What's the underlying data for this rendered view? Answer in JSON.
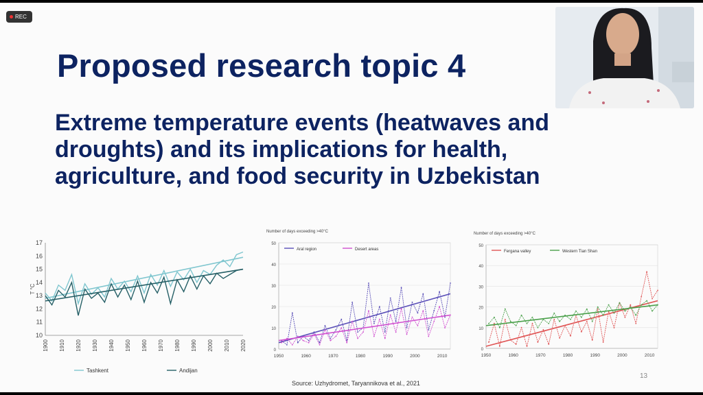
{
  "recording": {
    "label": "REC"
  },
  "slide": {
    "title": "Proposed research topic 4",
    "subtitle": "Extreme temperature events (heatwaves and droughts) and its implications for health, agriculture, and food security in Uzbekistan",
    "source": "Source: Uzhydromet, Taryannikova et al., 2021",
    "page_number": "13"
  },
  "chart_data": [
    {
      "type": "line",
      "title": "",
      "xlabel": "",
      "ylabel": "T °C",
      "xlim": [
        1900,
        2020
      ],
      "ylim": [
        10,
        17
      ],
      "x_ticks": [
        "1900",
        "1910",
        "1920",
        "1930",
        "1940",
        "1950",
        "1960",
        "1970",
        "1980",
        "1990",
        "2000",
        "2010",
        "2020"
      ],
      "y_ticks": [
        "10",
        "11",
        "12",
        "13",
        "14",
        "15",
        "16",
        "17"
      ],
      "series": [
        {
          "name": "Tashkent",
          "color": "#7fc6cf",
          "x": [
            1900,
            1904,
            1908,
            1912,
            1916,
            1920,
            1924,
            1928,
            1932,
            1936,
            1940,
            1944,
            1948,
            1952,
            1956,
            1960,
            1964,
            1968,
            1972,
            1976,
            1980,
            1984,
            1988,
            1992,
            1996,
            2000,
            2004,
            2008,
            2012,
            2016,
            2020
          ],
          "values": [
            13.2,
            12.6,
            13.8,
            13.4,
            14.6,
            12.4,
            13.9,
            13.1,
            13.6,
            12.9,
            14.3,
            13.5,
            14.1,
            13.3,
            14.5,
            13.2,
            14.6,
            13.8,
            14.9,
            13.7,
            14.8,
            14.2,
            15.0,
            14.0,
            14.9,
            14.6,
            15.3,
            15.7,
            15.2,
            16.1,
            16.3
          ],
          "trend": [
            12.8,
            15.9
          ]
        },
        {
          "name": "Andijan",
          "color": "#255f66",
          "x": [
            1900,
            1904,
            1908,
            1912,
            1916,
            1920,
            1924,
            1928,
            1932,
            1936,
            1940,
            1944,
            1948,
            1952,
            1956,
            1960,
            1964,
            1968,
            1972,
            1976,
            1980,
            1984,
            1988,
            1992,
            1996,
            2000,
            2004,
            2008,
            2012,
            2016,
            2020
          ],
          "values": [
            13.0,
            12.3,
            13.4,
            12.9,
            14.0,
            11.5,
            13.5,
            12.8,
            13.2,
            12.5,
            13.9,
            12.9,
            13.8,
            12.7,
            14.1,
            12.5,
            14.0,
            13.2,
            14.4,
            12.4,
            14.2,
            13.3,
            14.5,
            13.5,
            14.5,
            13.9,
            14.7,
            14.3,
            14.6,
            14.9,
            15.0
          ],
          "trend": [
            12.6,
            15.0
          ]
        }
      ]
    },
    {
      "type": "line",
      "title": "Number of days exceeding >40°C",
      "xlabel": "",
      "ylabel": "",
      "xlim": [
        1950,
        2013
      ],
      "ylim": [
        0,
        50
      ],
      "x_ticks": [
        "1950",
        "1960",
        "1970",
        "1980",
        "1990",
        "2000",
        "2010"
      ],
      "y_ticks": [
        "0",
        "10",
        "20",
        "30",
        "40",
        "50"
      ],
      "series": [
        {
          "name": "Aral region",
          "color": "#5a4fb8",
          "x": [
            1951,
            1953,
            1955,
            1957,
            1959,
            1961,
            1963,
            1965,
            1967,
            1969,
            1971,
            1973,
            1975,
            1977,
            1979,
            1981,
            1983,
            1985,
            1987,
            1989,
            1991,
            1993,
            1995,
            1997,
            1999,
            2001,
            2003,
            2005,
            2007,
            2009,
            2011,
            2013
          ],
          "values": [
            4,
            2,
            17,
            3,
            6,
            4,
            8,
            3,
            11,
            5,
            9,
            14,
            4,
            22,
            8,
            10,
            31,
            12,
            20,
            8,
            24,
            13,
            29,
            10,
            22,
            17,
            26,
            9,
            18,
            27,
            15,
            31
          ],
          "trend": [
            3,
            26
          ]
        },
        {
          "name": "Desert areas",
          "color": "#d04fd0",
          "x": [
            1951,
            1953,
            1955,
            1957,
            1959,
            1961,
            1963,
            1965,
            1967,
            1969,
            1971,
            1973,
            1975,
            1977,
            1979,
            1981,
            1983,
            1985,
            1987,
            1989,
            1991,
            1993,
            1995,
            1997,
            1999,
            2001,
            2003,
            2005,
            2007,
            2009,
            2011,
            2013
          ],
          "values": [
            3,
            5,
            2,
            6,
            4,
            3,
            7,
            2,
            9,
            4,
            6,
            10,
            3,
            13,
            5,
            8,
            18,
            6,
            14,
            5,
            16,
            8,
            19,
            7,
            15,
            11,
            18,
            6,
            13,
            20,
            10,
            16
          ],
          "trend": [
            4,
            16
          ]
        }
      ]
    },
    {
      "type": "line",
      "title": "Number of days exceeding >40°C",
      "xlabel": "",
      "ylabel": "",
      "xlim": [
        1950,
        2013
      ],
      "ylim": [
        0,
        50
      ],
      "x_ticks": [
        "1950",
        "1960",
        "1970",
        "1980",
        "1990",
        "2000",
        "2010"
      ],
      "y_ticks": [
        "0",
        "10",
        "20",
        "30",
        "40",
        "50"
      ],
      "series": [
        {
          "name": "Fergana valley",
          "color": "#e05555",
          "x": [
            1951,
            1953,
            1955,
            1957,
            1959,
            1961,
            1963,
            1965,
            1967,
            1969,
            1971,
            1973,
            1975,
            1977,
            1979,
            1981,
            1983,
            1985,
            1987,
            1989,
            1991,
            1993,
            1995,
            1997,
            1999,
            2001,
            2003,
            2005,
            2007,
            2009,
            2011,
            2013
          ],
          "values": [
            3,
            12,
            1,
            14,
            4,
            2,
            10,
            1,
            12,
            3,
            9,
            2,
            14,
            5,
            11,
            6,
            16,
            8,
            13,
            4,
            19,
            3,
            18,
            10,
            22,
            15,
            21,
            12,
            25,
            37,
            24,
            28
          ],
          "trend": [
            1,
            23
          ]
        },
        {
          "name": "Western Tian Shan",
          "color": "#4aa04a",
          "x": [
            1951,
            1953,
            1955,
            1957,
            1959,
            1961,
            1963,
            1965,
            1967,
            1969,
            1971,
            1973,
            1975,
            1977,
            1979,
            1981,
            1983,
            1985,
            1987,
            1989,
            1991,
            1993,
            1995,
            1997,
            1999,
            2001,
            2003,
            2005,
            2007,
            2009,
            2011,
            2013
          ],
          "values": [
            12,
            15,
            10,
            19,
            13,
            11,
            16,
            12,
            15,
            10,
            14,
            12,
            17,
            13,
            16,
            14,
            18,
            15,
            19,
            13,
            20,
            16,
            21,
            17,
            22,
            18,
            20,
            16,
            21,
            23,
            18,
            21
          ],
          "trend": [
            11,
            21
          ]
        }
      ]
    }
  ]
}
